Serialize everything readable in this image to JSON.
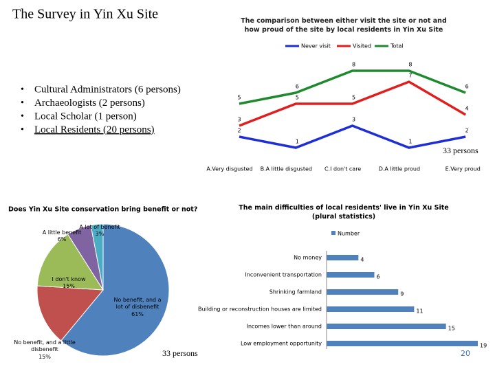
{
  "title": "The Survey in Yin Xu Site",
  "bullets": [
    "Cultural Administrators (6 persons)",
    "Archaeologists (2 persons)",
    "Local Scholar (1 person)",
    "Local Residents (20 persons)"
  ],
  "line_note": "33 persons",
  "pie_note": "33 persons",
  "page_number": "20",
  "chart_data": [
    {
      "type": "line",
      "title": "The comparison between either visit the site or not and how proud of the site by local residents in Yin Xu Site",
      "categories": [
        "A.Very disgusted",
        "B.A little disgusted",
        "C.I don't care",
        "D.A little proud",
        "E.Very proud"
      ],
      "series": [
        {
          "name": "Never visit",
          "color": "#1f2fd6",
          "values": [
            2,
            1,
            3,
            1,
            2
          ]
        },
        {
          "name": "Visited",
          "color": "#e01e1e",
          "values": [
            3,
            5,
            5,
            7,
            4
          ]
        },
        {
          "name": "Total",
          "color": "#1e8a2e",
          "values": [
            5,
            6,
            8,
            8,
            6
          ]
        }
      ]
    },
    {
      "type": "pie",
      "title": "Does Yin Xu Site conservation bring benefit or not?",
      "categories": [
        "No benefit, and a lot of disbenefit",
        "No benefit, and a little disbenefit",
        "I don't know",
        "A little benefit",
        "A lot of benefit"
      ],
      "values": [
        61,
        15,
        15,
        6,
        3
      ],
      "value_labels": [
        "61%",
        "15%",
        "15%",
        "6%",
        "3%"
      ],
      "colors": [
        "#4f81bd",
        "#c0504d",
        "#9bbb59",
        "#8064a2",
        "#4bacc6"
      ]
    },
    {
      "type": "hbar",
      "title": "The main difficulties of local residents' live in Yin Xu Site (plural statistics)",
      "categories": [
        "No money",
        "Inconvenient transportation",
        "Shrinking farmland",
        "Building or reconstruction houses are limited",
        "Incomes lower than around",
        "Low employment opportunity"
      ],
      "series": [
        {
          "name": "Number",
          "color": "#4f81bd",
          "values": [
            4,
            6,
            9,
            11,
            15,
            19
          ]
        }
      ]
    }
  ]
}
